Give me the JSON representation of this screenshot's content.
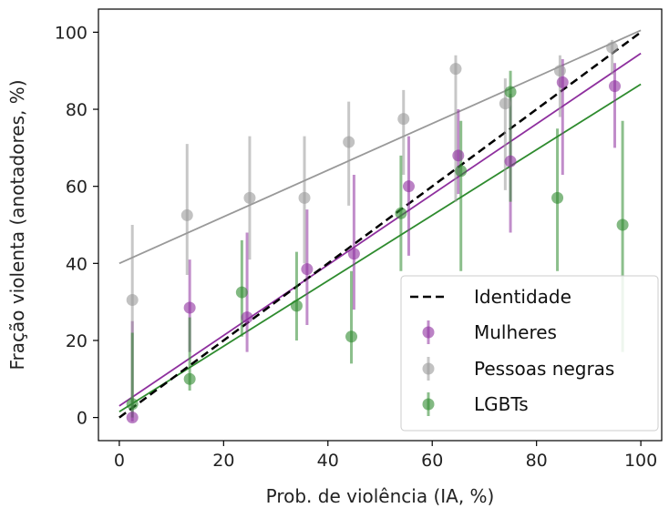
{
  "chart_data": {
    "type": "scatter",
    "xlabel": "Prob. de violência (IA, %)",
    "ylabel": "Fração violenta (anotadores, %)",
    "xlim": [
      -4,
      104
    ],
    "ylim": [
      -6,
      106
    ],
    "xticks": [
      0,
      20,
      40,
      60,
      80,
      100
    ],
    "yticks": [
      0,
      20,
      40,
      60,
      80,
      100
    ],
    "grid": false,
    "legend_position": "lower-right",
    "reference_line": {
      "name": "Identidade",
      "color": "#000000",
      "style": "dashed",
      "from": [
        0,
        0
      ],
      "to": [
        100,
        100
      ]
    },
    "series": [
      {
        "name": "Mulheres",
        "color": "#8e2f9e",
        "points": [
          {
            "x": 2.5,
            "y": 0,
            "lo": -1,
            "hi": 25
          },
          {
            "x": 13.5,
            "y": 28.5,
            "lo": 17,
            "hi": 41
          },
          {
            "x": 24.5,
            "y": 26,
            "lo": 17,
            "hi": 48
          },
          {
            "x": 36,
            "y": 38.5,
            "lo": 24,
            "hi": 54
          },
          {
            "x": 45,
            "y": 42.5,
            "lo": 28,
            "hi": 63
          },
          {
            "x": 55.5,
            "y": 60,
            "lo": 42,
            "hi": 73
          },
          {
            "x": 65,
            "y": 68,
            "lo": 58,
            "hi": 80
          },
          {
            "x": 75,
            "y": 66.5,
            "lo": 48,
            "hi": 84
          },
          {
            "x": 85,
            "y": 87,
            "lo": 63,
            "hi": 93
          },
          {
            "x": 95,
            "y": 86,
            "lo": 70,
            "hi": 92
          }
        ],
        "fit": {
          "intercept": 3,
          "slope": 0.915
        }
      },
      {
        "name": "Pessoas negras",
        "color": "#999999",
        "points": [
          {
            "x": 2.5,
            "y": 30.5,
            "lo": 4,
            "hi": 50
          },
          {
            "x": 13,
            "y": 52.5,
            "lo": 37,
            "hi": 71
          },
          {
            "x": 25,
            "y": 57,
            "lo": 41,
            "hi": 73
          },
          {
            "x": 35.5,
            "y": 57,
            "lo": 40,
            "hi": 73
          },
          {
            "x": 44,
            "y": 71.5,
            "lo": 55,
            "hi": 82
          },
          {
            "x": 54.5,
            "y": 77.5,
            "lo": 63,
            "hi": 85
          },
          {
            "x": 64.5,
            "y": 90.5,
            "lo": 56,
            "hi": 94
          },
          {
            "x": 74,
            "y": 81.5,
            "lo": 59,
            "hi": 88
          },
          {
            "x": 84.5,
            "y": 90,
            "lo": 78,
            "hi": 94
          },
          {
            "x": 94.5,
            "y": 96,
            "lo": 89,
            "hi": 98
          }
        ],
        "fit": {
          "intercept": 40,
          "slope": 0.605
        }
      },
      {
        "name": "LGBTs",
        "color": "#2e8b2e",
        "points": [
          {
            "x": 2.5,
            "y": 3.5,
            "lo": 0,
            "hi": 22
          },
          {
            "x": 13.5,
            "y": 10,
            "lo": 7,
            "hi": 26
          },
          {
            "x": 23.5,
            "y": 32.5,
            "lo": 21,
            "hi": 46
          },
          {
            "x": 34,
            "y": 29,
            "lo": 20,
            "hi": 43
          },
          {
            "x": 44.5,
            "y": 21,
            "lo": 14,
            "hi": 38
          },
          {
            "x": 54,
            "y": 53,
            "lo": 38,
            "hi": 68
          },
          {
            "x": 65.5,
            "y": 64,
            "lo": 38,
            "hi": 77
          },
          {
            "x": 75,
            "y": 84.5,
            "lo": 56,
            "hi": 90
          },
          {
            "x": 84,
            "y": 57,
            "lo": 38,
            "hi": 75
          },
          {
            "x": 96.5,
            "y": 50,
            "lo": 17,
            "hi": 77
          }
        ],
        "fit": {
          "intercept": 1.5,
          "slope": 0.85
        }
      }
    ]
  }
}
